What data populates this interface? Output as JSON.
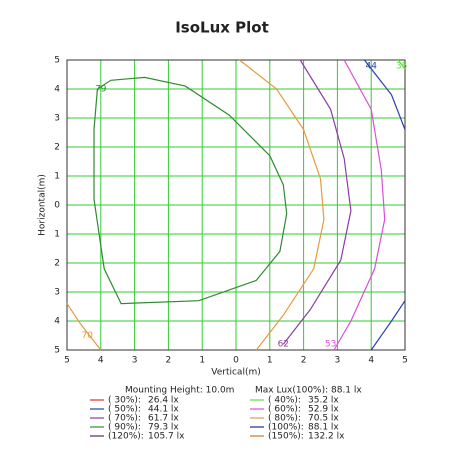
{
  "chart_data": {
    "type": "contour",
    "title": "IsoLux Plot",
    "x_label": "Vertical(m)",
    "y_label": "Horizontal(m)",
    "xlim": [
      -5,
      5
    ],
    "ylim": [
      -5,
      5
    ],
    "xticks": [
      {
        "value": -5,
        "label": "5"
      },
      {
        "value": -4,
        "label": "4"
      },
      {
        "value": -3,
        "label": "3"
      },
      {
        "value": -2,
        "label": "2"
      },
      {
        "value": -1,
        "label": "1"
      },
      0,
      1,
      2,
      3,
      4,
      5
    ],
    "yticks": [
      {
        "value": -5,
        "label": "5"
      },
      {
        "value": -4,
        "label": "4"
      },
      {
        "value": -3,
        "label": "3"
      },
      {
        "value": -2,
        "label": "2"
      },
      {
        "value": -1,
        "label": "1"
      },
      0,
      1,
      2,
      3,
      4,
      5
    ],
    "grid": true,
    "grid_color": "#33cc33",
    "series": [
      {
        "label": "79",
        "color": "#2e8b2e",
        "label_x": -4.0,
        "label_y": 4.0,
        "x": [
          -4.1,
          -3.7,
          -2.7,
          -1.5,
          -0.2,
          1.0,
          1.4,
          1.5,
          1.3,
          0.6,
          -1.1,
          -3.4,
          -3.9,
          -4.2,
          -4.2,
          -4.1
        ],
        "y": [
          4.0,
          4.3,
          4.4,
          4.1,
          3.1,
          1.7,
          0.7,
          -0.3,
          -1.6,
          -2.6,
          -3.3,
          -3.4,
          -2.2,
          0.2,
          2.6,
          4.0
        ]
      },
      {
        "label": "70",
        "color": "#e69a3c",
        "label_x": -4.4,
        "label_y": -4.5,
        "x": [
          0.1,
          1.2,
          2.0,
          2.5,
          2.6,
          2.3,
          1.4,
          0.6,
          null,
          -5.0,
          -4.6,
          -4.0
        ],
        "y": [
          5.0,
          4.0,
          2.6,
          0.9,
          -0.5,
          -2.2,
          -3.8,
          -5.0,
          null,
          -3.4,
          -4.1,
          -5.0
        ]
      },
      {
        "label": "62",
        "color": "#8a3fa0",
        "label_x": 1.4,
        "label_y": -4.8,
        "x": [
          1.9,
          2.8,
          3.2,
          3.4,
          3.1,
          2.2,
          1.4
        ],
        "y": [
          5.0,
          3.3,
          1.6,
          -0.2,
          -1.9,
          -3.6,
          -4.8
        ]
      },
      {
        "label": "53",
        "color": "#d94fd9",
        "label_x": 2.8,
        "label_y": -4.8,
        "x": [
          3.2,
          4.0,
          4.3,
          4.4,
          4.1,
          3.4,
          2.9
        ],
        "y": [
          5.0,
          3.3,
          1.2,
          -0.5,
          -2.2,
          -4.0,
          -5.0
        ]
      },
      {
        "label": "44",
        "color": "#2a3fb0",
        "label_x": 4.0,
        "label_y": 4.8,
        "x": [
          3.8,
          4.6,
          5.0,
          null,
          4.0,
          4.6,
          5.0
        ],
        "y": [
          5.0,
          3.8,
          2.6,
          null,
          -5.0,
          -4.0,
          -3.3
        ]
      },
      {
        "label": "35",
        "color": "#66dd44",
        "label_x": 4.9,
        "label_y": 4.8,
        "x": [
          4.8,
          5.0
        ],
        "y": [
          5.0,
          4.7
        ]
      }
    ],
    "mounting_height": "Mounting Height: 10.0m",
    "max_lux": "Max Lux(100%): 88.1 lx",
    "legend": [
      {
        "name": "( 30%):",
        "color": "#e03030",
        "value": 26.4,
        "value_label": "26.4 lx"
      },
      {
        "name": "( 40%):",
        "color": "#66dd44",
        "value": 35.2,
        "value_label": "35.2 lx"
      },
      {
        "name": "( 50%):",
        "color": "#2a3fb0",
        "value": 44.1,
        "value_label": "44.1 lx"
      },
      {
        "name": "( 60%):",
        "color": "#d94fd9",
        "value": 52.9,
        "value_label": "52.9 lx"
      },
      {
        "name": "( 70%):",
        "color": "#8a3fa0",
        "value": 61.7,
        "value_label": "61.7 lx"
      },
      {
        "name": "( 80%):",
        "color": "#e69a3c",
        "value": 70.5,
        "value_label": "70.5 lx"
      },
      {
        "name": "( 90%):",
        "color": "#2e8b2e",
        "value": 79.3,
        "value_label": "79.3 lx"
      },
      {
        "name": "(100%):",
        "color": "#1a2a8a",
        "value": 88.1,
        "value_label": "88.1 lx"
      },
      {
        "name": "(120%):",
        "color": "#5a2a6a",
        "value": 105.7,
        "value_label": "105.7 lx"
      },
      {
        "name": "(150%):",
        "color": "#c8782a",
        "value": 132.2,
        "value_label": "132.2 lx"
      }
    ]
  }
}
